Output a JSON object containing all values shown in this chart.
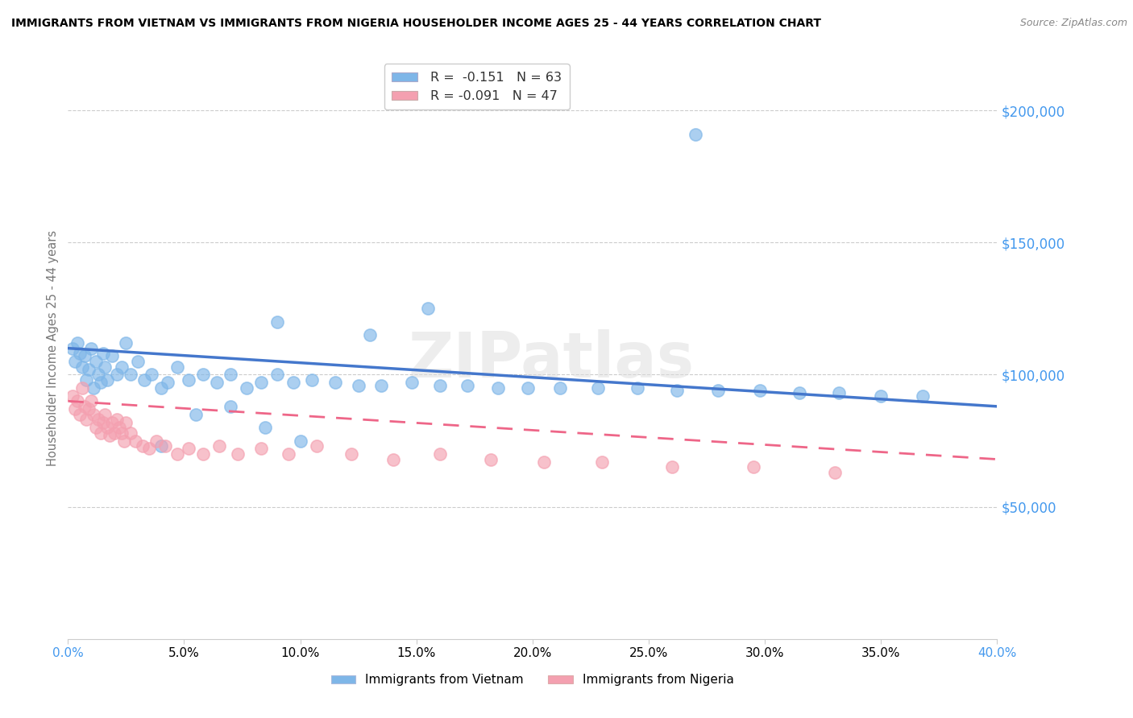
{
  "title": "IMMIGRANTS FROM VIETNAM VS IMMIGRANTS FROM NIGERIA HOUSEHOLDER INCOME AGES 25 - 44 YEARS CORRELATION CHART",
  "source": "Source: ZipAtlas.com",
  "ylabel": "Householder Income Ages 25 - 44 years",
  "xlim": [
    0.0,
    0.4
  ],
  "ylim": [
    0,
    220000
  ],
  "xticks": [
    0.0,
    0.05,
    0.1,
    0.15,
    0.2,
    0.25,
    0.3,
    0.35,
    0.4
  ],
  "xtick_labels": [
    "0.0%",
    "5.0%",
    "10.0%",
    "15.0%",
    "20.0%",
    "25.0%",
    "30.0%",
    "35.0%",
    "40.0%"
  ],
  "yticks_right": [
    50000,
    100000,
    150000,
    200000
  ],
  "ytick_labels_right": [
    "$50,000",
    "$100,000",
    "$150,000",
    "$200,000"
  ],
  "legend_vietnam": "Immigrants from Vietnam",
  "legend_nigeria": "Immigrants from Nigeria",
  "r_vietnam": "-0.151",
  "n_vietnam": "63",
  "r_nigeria": "-0.091",
  "n_nigeria": "47",
  "color_vietnam": "#7EB6E8",
  "color_nigeria": "#F4A0B0",
  "color_trend_vietnam": "#4477CC",
  "color_trend_nigeria": "#EE6688",
  "color_right_axis": "#4499EE",
  "color_xtick_ends": "#4499EE",
  "watermark": "ZIPatlas",
  "vietnam_x": [
    0.002,
    0.003,
    0.004,
    0.005,
    0.006,
    0.007,
    0.008,
    0.009,
    0.01,
    0.011,
    0.012,
    0.013,
    0.014,
    0.015,
    0.016,
    0.017,
    0.019,
    0.021,
    0.023,
    0.025,
    0.027,
    0.03,
    0.033,
    0.036,
    0.04,
    0.043,
    0.047,
    0.052,
    0.058,
    0.064,
    0.07,
    0.077,
    0.083,
    0.09,
    0.097,
    0.105,
    0.115,
    0.125,
    0.135,
    0.148,
    0.16,
    0.172,
    0.185,
    0.198,
    0.212,
    0.228,
    0.245,
    0.262,
    0.28,
    0.298,
    0.315,
    0.332,
    0.35,
    0.368,
    0.09,
    0.13,
    0.155,
    0.04,
    0.055,
    0.07,
    0.085,
    0.1,
    0.27
  ],
  "vietnam_y": [
    110000,
    105000,
    112000,
    108000,
    103000,
    107000,
    98000,
    102000,
    110000,
    95000,
    105000,
    100000,
    97000,
    108000,
    103000,
    98000,
    107000,
    100000,
    103000,
    112000,
    100000,
    105000,
    98000,
    100000,
    95000,
    97000,
    103000,
    98000,
    100000,
    97000,
    100000,
    95000,
    97000,
    100000,
    97000,
    98000,
    97000,
    96000,
    96000,
    97000,
    96000,
    96000,
    95000,
    95000,
    95000,
    95000,
    95000,
    94000,
    94000,
    94000,
    93000,
    93000,
    92000,
    92000,
    120000,
    115000,
    125000,
    73000,
    85000,
    88000,
    80000,
    75000,
    191000
  ],
  "nigeria_x": [
    0.002,
    0.003,
    0.004,
    0.005,
    0.006,
    0.007,
    0.008,
    0.009,
    0.01,
    0.011,
    0.012,
    0.013,
    0.014,
    0.015,
    0.016,
    0.017,
    0.018,
    0.019,
    0.02,
    0.021,
    0.022,
    0.023,
    0.024,
    0.025,
    0.027,
    0.029,
    0.032,
    0.035,
    0.038,
    0.042,
    0.047,
    0.052,
    0.058,
    0.065,
    0.073,
    0.083,
    0.095,
    0.107,
    0.122,
    0.14,
    0.16,
    0.182,
    0.205,
    0.23,
    0.26,
    0.295,
    0.33
  ],
  "nigeria_y": [
    92000,
    87000,
    90000,
    85000,
    95000,
    88000,
    83000,
    87000,
    90000,
    85000,
    80000,
    83000,
    78000,
    82000,
    85000,
    80000,
    77000,
    82000,
    78000,
    83000,
    80000,
    78000,
    75000,
    82000,
    78000,
    75000,
    73000,
    72000,
    75000,
    73000,
    70000,
    72000,
    70000,
    73000,
    70000,
    72000,
    70000,
    73000,
    70000,
    68000,
    70000,
    68000,
    67000,
    67000,
    65000,
    65000,
    63000
  ],
  "trend_vietnam_x0": 0.0,
  "trend_vietnam_y0": 110000,
  "trend_vietnam_x1": 0.4,
  "trend_vietnam_y1": 88000,
  "trend_nigeria_x0": 0.0,
  "trend_nigeria_y0": 90000,
  "trend_nigeria_x1": 0.4,
  "trend_nigeria_y1": 68000
}
